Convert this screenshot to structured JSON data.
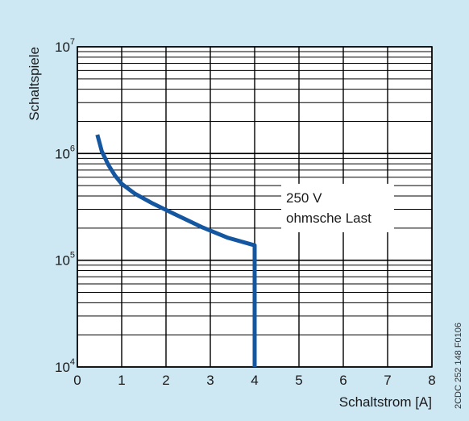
{
  "chart_data": {
    "type": "line",
    "title": "",
    "xlabel": "Schaltstrom [A]",
    "ylabel": "Schaltspiele",
    "xlim": [
      0,
      8
    ],
    "ylim": [
      10000,
      10000000
    ],
    "yscale": "log",
    "x_ticks": [
      "0",
      "1",
      "2",
      "3",
      "4",
      "5",
      "6",
      "7",
      "8"
    ],
    "y_ticks": [
      {
        "base": "10",
        "exp": "4",
        "value": 10000
      },
      {
        "base": "10",
        "exp": "5",
        "value": 100000
      },
      {
        "base": "10",
        "exp": "6",
        "value": 1000000
      },
      {
        "base": "10",
        "exp": "7",
        "value": 10000000
      }
    ],
    "grid": true,
    "series": [
      {
        "color": "#1457a0",
        "x": [
          0.45,
          0.55,
          0.7,
          0.85,
          1.0,
          1.3,
          1.7,
          2.2,
          2.8,
          3.4,
          4.0,
          4.0
        ],
        "y": [
          1500000,
          1050000,
          780000,
          620000,
          520000,
          420000,
          340000,
          270000,
          205000,
          162000,
          138000,
          10000
        ]
      }
    ],
    "annotation": {
      "line1": "250 V",
      "line2": "ohmsche Last"
    },
    "side_code": "2CDC 252 148 F0106"
  }
}
